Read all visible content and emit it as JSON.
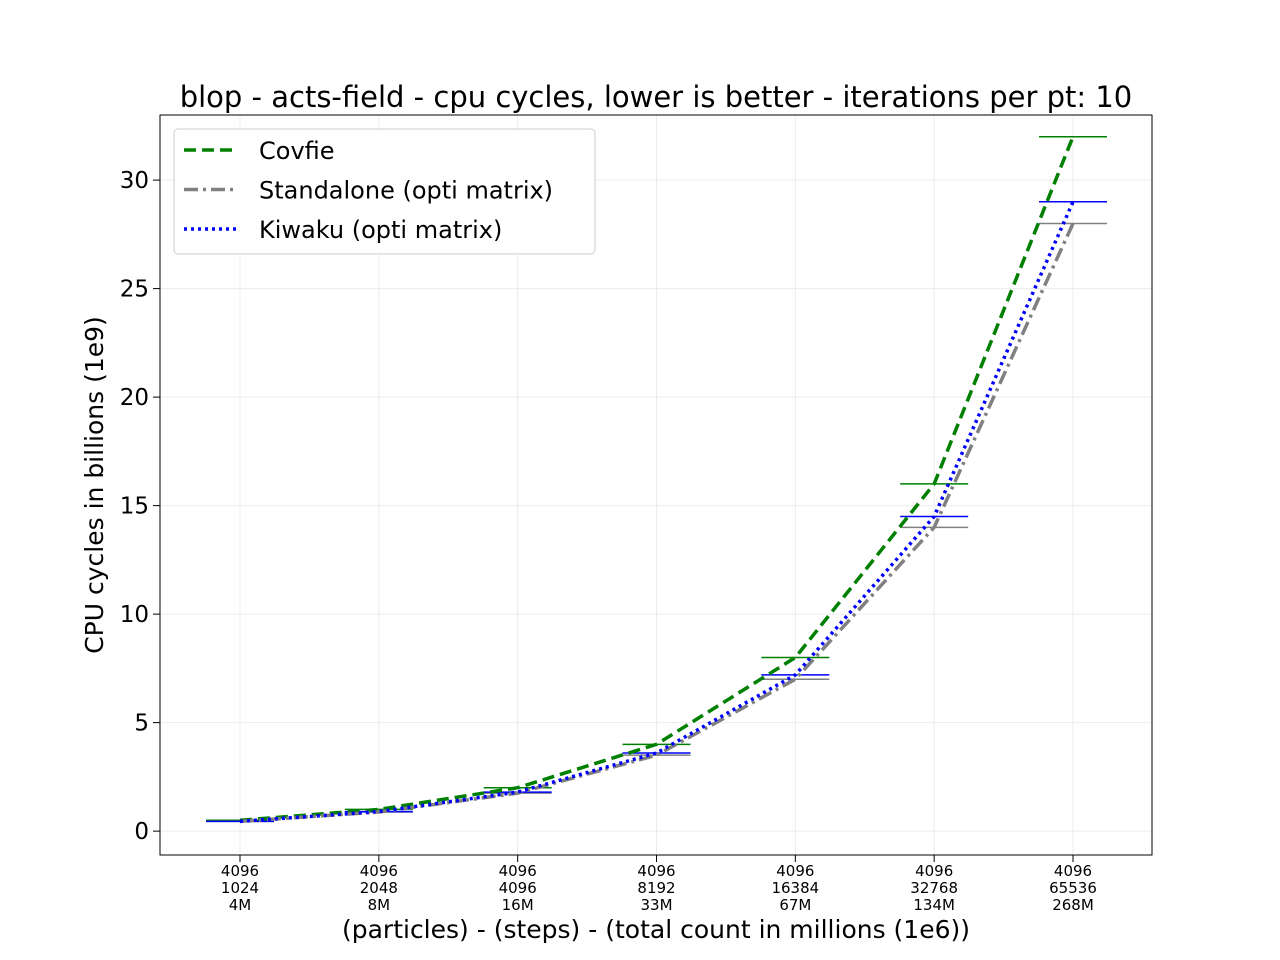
{
  "chart_data": {
    "type": "line",
    "title": "blop - acts-field - cpu cycles, lower is better - iterations per pt: 10",
    "xlabel": "(particles) - (steps) - (total count in millions (1e6))",
    "ylabel": "CPU cycles in billions (1e9)",
    "ylim": [
      -1.1,
      33.0
    ],
    "yticks": [
      0,
      5,
      10,
      15,
      20,
      25,
      30
    ],
    "grid": true,
    "legend_position": "top-left",
    "categories": [
      [
        "4096",
        "1024",
        "4M"
      ],
      [
        "4096",
        "2048",
        "8M"
      ],
      [
        "4096",
        "4096",
        "16M"
      ],
      [
        "4096",
        "8192",
        "33M"
      ],
      [
        "4096",
        "16384",
        "67M"
      ],
      [
        "4096",
        "32768",
        "134M"
      ],
      [
        "4096",
        "65536",
        "268M"
      ]
    ],
    "series": [
      {
        "name": "Covfie",
        "color": "#008000",
        "dash": "dashed",
        "values": [
          0.5,
          1.0,
          2.0,
          4.0,
          8.0,
          16.0,
          32.0
        ]
      },
      {
        "name": "Standalone (opti matrix)",
        "color": "#808080",
        "dash": "dashdot",
        "values": [
          0.45,
          0.88,
          1.75,
          3.5,
          7.0,
          14.0,
          28.0
        ]
      },
      {
        "name": "Kiwaku (opti matrix)",
        "color": "#0000ff",
        "dash": "dotted",
        "values": [
          0.45,
          0.9,
          1.8,
          3.6,
          7.2,
          14.5,
          29.0
        ]
      }
    ]
  }
}
